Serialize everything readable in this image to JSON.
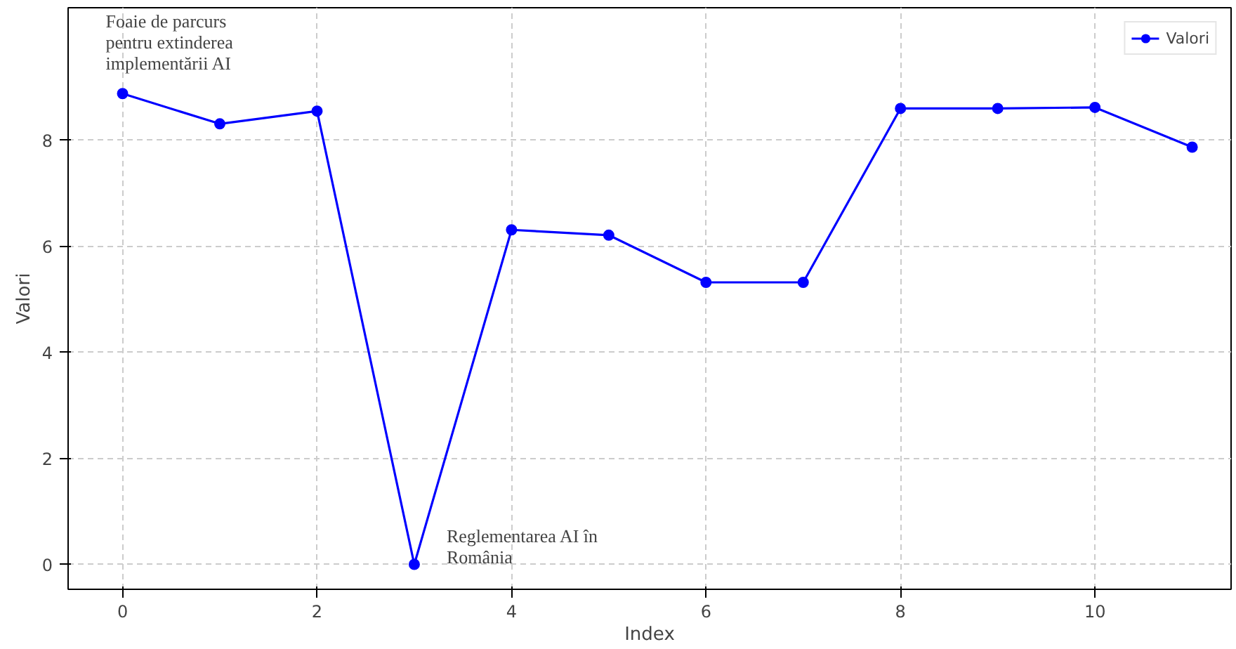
{
  "chart_data": {
    "type": "line",
    "xlabel": "Index",
    "ylabel": "Valori",
    "x": [
      0,
      1,
      2,
      3,
      4,
      5,
      6,
      7,
      8,
      9,
      10,
      11
    ],
    "series": [
      {
        "name": "Valori",
        "color": "#0000ff",
        "values": [
          8.88,
          8.31,
          8.55,
          0,
          6.31,
          6.21,
          5.32,
          5.32,
          8.6,
          8.6,
          8.62,
          7.87
        ]
      }
    ],
    "xlim": [
      -0.56,
      11.4
    ],
    "ylim": [
      -0.47,
      10.5
    ],
    "xticks": [
      0,
      2,
      4,
      6,
      8,
      10
    ],
    "yticks": [
      0,
      2,
      4,
      6,
      8
    ],
    "grid": true,
    "legend": "top right",
    "marker": "circle",
    "line_style": "solid",
    "annotations": [
      {
        "text": "Foaie de parcurs\npentru extinderea\nimplementării AI",
        "x": 0,
        "y": 8.88
      },
      {
        "text": "Reglementarea AI în\nRomânia",
        "x": 3,
        "y": 0
      }
    ]
  }
}
